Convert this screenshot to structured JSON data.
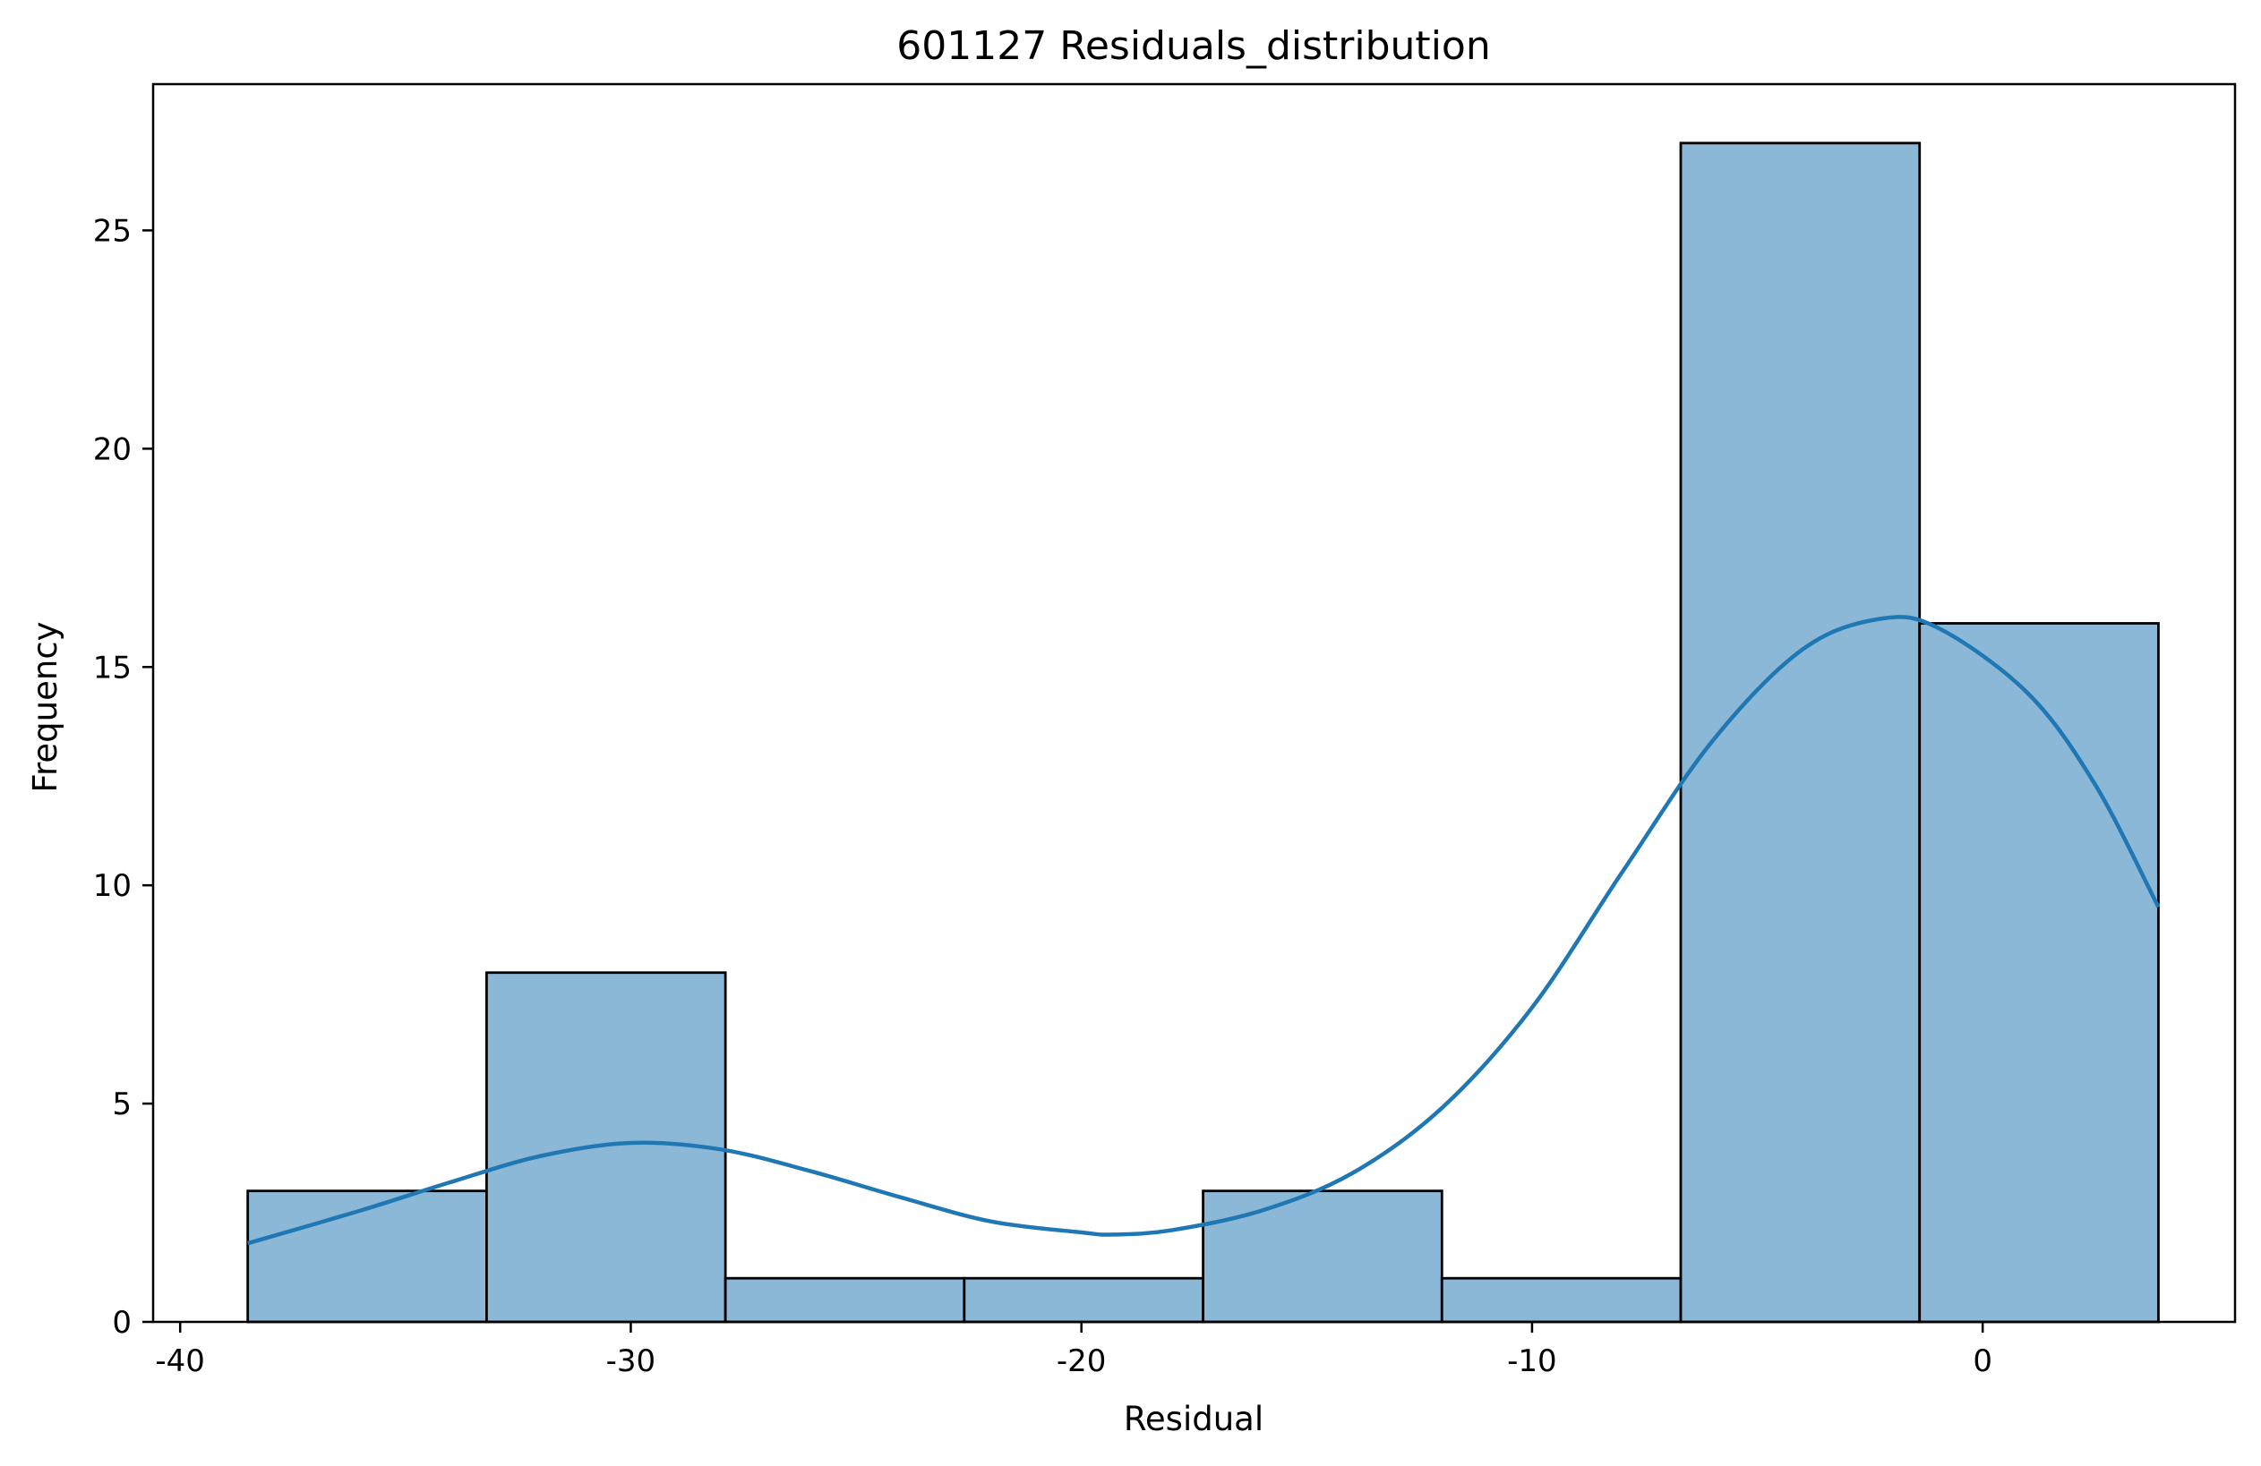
{
  "chart_data": {
    "type": "bar",
    "title": "601127 Residuals_distribution",
    "xlabel": "Residual",
    "ylabel": "Frequency",
    "xlim": [
      -40.6,
      5.6
    ],
    "ylim": [
      0,
      28.35
    ],
    "xticks": [
      -40,
      -30,
      -20,
      -10,
      0
    ],
    "xtick_labels": [
      "-40",
      "-30",
      "-20",
      "-10",
      "0"
    ],
    "yticks": [
      0,
      5,
      10,
      15,
      20,
      25
    ],
    "ytick_labels": [
      "0",
      "5",
      "10",
      "15",
      "20",
      "25"
    ],
    "bins": [
      {
        "x0": -38.5,
        "x1": -33.2,
        "count": 3
      },
      {
        "x0": -33.2,
        "x1": -27.9,
        "count": 8
      },
      {
        "x0": -27.9,
        "x1": -22.6,
        "count": 1
      },
      {
        "x0": -22.6,
        "x1": -17.3,
        "count": 1
      },
      {
        "x0": -17.3,
        "x1": -12.0,
        "count": 3
      },
      {
        "x0": -12.0,
        "x1": -6.7,
        "count": 1
      },
      {
        "x0": -6.7,
        "x1": -1.4,
        "count": 27
      },
      {
        "x0": -1.4,
        "x1": 3.9,
        "count": 16
      }
    ],
    "kde": {
      "x": [
        -38.5,
        -36,
        -34,
        -32,
        -30,
        -28,
        -26,
        -24,
        -22,
        -20,
        -19.3,
        -18,
        -16,
        -14,
        -12,
        -10,
        -8,
        -6,
        -4,
        -2.3,
        -1,
        1,
        2.5,
        3.9
      ],
      "y": [
        1.8,
        2.55,
        3.2,
        3.8,
        4.1,
        3.95,
        3.45,
        2.85,
        2.3,
        2.05,
        2.0,
        2.1,
        2.55,
        3.4,
        4.9,
        7.2,
        10.3,
        13.3,
        15.4,
        16.1,
        15.9,
        14.4,
        12.3,
        9.5
      ]
    },
    "bar_fill": "#8cb8d8",
    "bar_edge": "#000000",
    "kde_color": "#1f77b4",
    "grid": false,
    "legend": "none"
  }
}
